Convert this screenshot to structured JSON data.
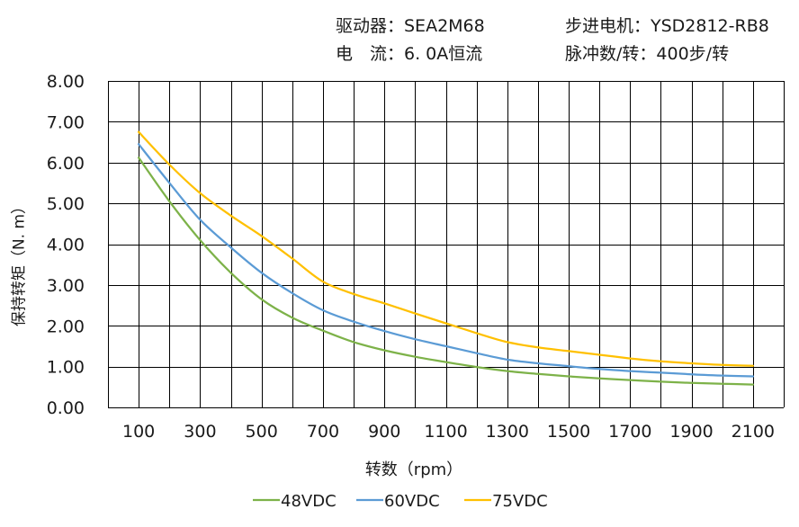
{
  "info": {
    "driver": "驱动器：SEA2M68",
    "current": "电　流：6. 0A恒流",
    "motor": "步进电机：YSD2812-RB8",
    "pulses": "脉冲数/转：400步/转"
  },
  "chart_data": {
    "type": "line",
    "xlabel": "转数（rpm）",
    "ylabel": "保持转矩（N. m）",
    "x_ticks": [
      "100",
      "300",
      "500",
      "700",
      "900",
      "1100",
      "1300",
      "1500",
      "1700",
      "1900",
      "2100"
    ],
    "y_ticks": [
      "0.00",
      "1.00",
      "2.00",
      "3.00",
      "4.00",
      "5.00",
      "6.00",
      "7.00",
      "8.00"
    ],
    "xlim": [
      0,
      2200
    ],
    "ylim": [
      0,
      8
    ],
    "grid": true,
    "legend_position": "bottom",
    "x": [
      100,
      200,
      300,
      400,
      500,
      600,
      700,
      800,
      900,
      1000,
      1100,
      1200,
      1300,
      1400,
      1500,
      1600,
      1700,
      1800,
      1900,
      2000,
      2100
    ],
    "series": [
      {
        "name": "48VDC",
        "color": "#7db249",
        "values": [
          6.12,
          5.05,
          4.1,
          3.3,
          2.65,
          2.2,
          1.88,
          1.6,
          1.4,
          1.24,
          1.11,
          0.99,
          0.89,
          0.82,
          0.76,
          0.71,
          0.67,
          0.63,
          0.6,
          0.58,
          0.56
        ]
      },
      {
        "name": "60VDC",
        "color": "#5b9bd5",
        "values": [
          6.45,
          5.5,
          4.6,
          3.92,
          3.3,
          2.8,
          2.38,
          2.1,
          1.87,
          1.67,
          1.5,
          1.33,
          1.17,
          1.08,
          1.01,
          0.94,
          0.89,
          0.85,
          0.81,
          0.78,
          0.76
        ]
      },
      {
        "name": "75VDC",
        "color": "#ffc000",
        "values": [
          6.75,
          5.95,
          5.25,
          4.7,
          4.2,
          3.65,
          3.08,
          2.78,
          2.55,
          2.3,
          2.06,
          1.82,
          1.6,
          1.47,
          1.38,
          1.29,
          1.2,
          1.13,
          1.08,
          1.04,
          1.02
        ]
      }
    ]
  }
}
